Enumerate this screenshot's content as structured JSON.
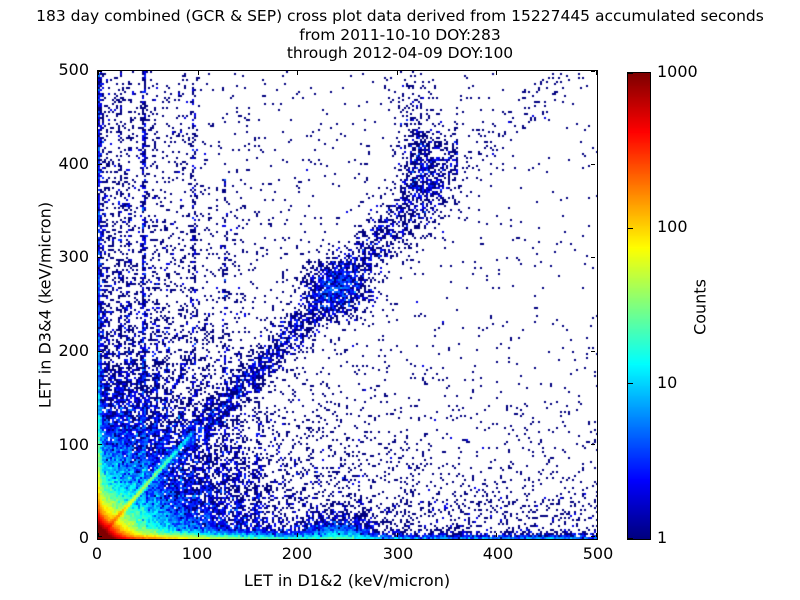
{
  "chart_data": {
    "type": "heatmap",
    "title_lines": [
      "183 day combined (GCR & SEP) cross plot data derived from 15227445 accumulated seconds",
      "from 2011-10-10 DOY:283",
      "through 2012-04-09 DOY:100"
    ],
    "xlabel": "LET in D1&2 (keV/micron)",
    "ylabel": "LET in D3&4 (keV/micron)",
    "xlim": [
      0,
      500
    ],
    "ylim": [
      0,
      500
    ],
    "x_ticks": [
      0,
      100,
      200,
      300,
      400,
      500
    ],
    "y_ticks": [
      0,
      100,
      200,
      300,
      400,
      500
    ],
    "grid": false,
    "background_color": "#ffffff",
    "point_color_min": "#00007f",
    "colorbar": {
      "label": "Counts",
      "scale": "log",
      "min": 1,
      "max": 1000,
      "ticks": [
        1,
        10,
        100,
        1000
      ],
      "colormap": "jet"
    },
    "bin_size_units": 2,
    "rng_seed": 42,
    "density_components": [
      {
        "name": "hot-core",
        "n": 70000,
        "x": {
          "dist": "exp",
          "scale": 7
        },
        "y": {
          "dist": "exp",
          "scale": 7
        }
      },
      {
        "name": "core-halo",
        "n": 25000,
        "x": {
          "dist": "exp",
          "scale": 18
        },
        "y": {
          "dist": "exp",
          "scale": 18
        }
      },
      {
        "name": "core-halo-wide",
        "n": 12000,
        "x": {
          "dist": "exp",
          "scale": 45
        },
        "y": {
          "dist": "exp",
          "scale": 45
        }
      },
      {
        "name": "bottom-band",
        "n": 16000,
        "x": {
          "dist": "exp",
          "scale": 55
        },
        "y": {
          "dist": "exp",
          "scale": 2.5
        }
      },
      {
        "name": "bottom-line-uniform",
        "n": 2000,
        "x": {
          "dist": "uniform",
          "min": 0,
          "max": 500
        },
        "y": {
          "dist": "exp",
          "scale": 2.0
        }
      },
      {
        "name": "bottom-halo",
        "n": 1500,
        "x": {
          "dist": "uniform",
          "min": 0,
          "max": 500
        },
        "y": {
          "dist": "exp",
          "scale": 50
        }
      },
      {
        "name": "bottom-clump",
        "n": 1400,
        "x": {
          "dist": "normal",
          "mu": 240,
          "sigma": 18
        },
        "y": {
          "dist": "exp",
          "scale": 8
        }
      },
      {
        "name": "left-band",
        "n": 5000,
        "x": {
          "dist": "exp",
          "scale": 1.8
        },
        "y": {
          "dist": "exp",
          "scale": 40
        }
      },
      {
        "name": "left-column-tall",
        "n": 900,
        "x": {
          "dist": "exp",
          "scale": 2.2
        },
        "y": {
          "dist": "uniform",
          "min": 0,
          "max": 500
        }
      },
      {
        "name": "left-halo",
        "n": 1200,
        "x": {
          "dist": "exp",
          "scale": 60
        },
        "y": {
          "dist": "uniform",
          "min": 0,
          "max": 500
        }
      },
      {
        "name": "main-diagonal-line",
        "n": 6000,
        "diag": {
          "slope": 1.12,
          "x": {
            "dist": "exp",
            "scale": 32,
            "max": 95
          },
          "perp_sigma": 1.6
        }
      },
      {
        "name": "diagonal-knot",
        "n": 300,
        "x": {
          "dist": "normal",
          "mu": 22.5,
          "sigma": 2.2
        },
        "y": {
          "dist": "normal",
          "mu": 25,
          "sigma": 2.2
        }
      },
      {
        "name": "diagonal-diffuse-band",
        "n": 2600,
        "diag": {
          "slope": 1.06,
          "x": {
            "dist": "uniform",
            "min": 55,
            "max": 360
          },
          "perp_sigma": 4,
          "perp_sigma_growth": 0.05
        }
      },
      {
        "name": "diagonal-blob",
        "n": 900,
        "x": {
          "dist": "normal",
          "mu": 240,
          "sigma": 16
        },
        "y": {
          "dist": "normal",
          "mu": 252,
          "sigma": 15
        }
      },
      {
        "name": "diagonal-sparse-tail",
        "n": 120,
        "diag": {
          "slope": 1.0,
          "x": {
            "dist": "uniform",
            "min": 360,
            "max": 485
          },
          "perp_sigma": 14
        }
      },
      {
        "name": "finger-a",
        "n": 350,
        "diag": {
          "slope": 0.45,
          "x": {
            "dist": "exp",
            "scale": 40,
            "max": 160
          },
          "perp_sigma": 1.6
        }
      },
      {
        "name": "finger-b",
        "n": 450,
        "diag": {
          "slope": 0.7,
          "x": {
            "dist": "exp",
            "scale": 35,
            "max": 150
          },
          "perp_sigma": 1.6
        }
      },
      {
        "name": "finger-c",
        "n": 500,
        "diag": {
          "slope": 1.22,
          "x": {
            "dist": "exp",
            "scale": 35,
            "max": 140
          },
          "perp_sigma": 1.5
        }
      },
      {
        "name": "finger-d",
        "n": 800,
        "diag": {
          "slope": 1.5,
          "x": {
            "dist": "exp",
            "scale": 30,
            "max": 130
          },
          "perp_sigma": 1.6
        }
      },
      {
        "name": "finger-e",
        "n": 650,
        "diag": {
          "slope": 2.0,
          "x": {
            "dist": "exp",
            "scale": 26,
            "max": 110
          },
          "perp_sigma": 1.6
        }
      },
      {
        "name": "finger-f",
        "n": 500,
        "diag": {
          "slope": 2.7,
          "x": {
            "dist": "exp",
            "scale": 22,
            "max": 95
          },
          "perp_sigma": 1.5
        }
      },
      {
        "name": "finger-g",
        "n": 400,
        "diag": {
          "slope": 3.8,
          "x": {
            "dist": "exp",
            "scale": 16,
            "max": 80
          },
          "perp_sigma": 1.4
        }
      },
      {
        "name": "finger-h",
        "n": 300,
        "diag": {
          "slope": 5.5,
          "x": {
            "dist": "exp",
            "scale": 10,
            "max": 60
          },
          "perp_sigma": 1.2
        }
      },
      {
        "name": "vstreak-46-tall",
        "n": 420,
        "x": {
          "dist": "normal",
          "mu": 46,
          "sigma": 1.2
        },
        "y": {
          "dist": "uniform",
          "min": 0,
          "max": 490
        }
      },
      {
        "name": "vstreak-46-low",
        "n": 380,
        "x": {
          "dist": "normal",
          "mu": 46,
          "sigma": 1.2
        },
        "y": {
          "dist": "exp",
          "scale": 120
        }
      },
      {
        "name": "vstreak-31",
        "n": 300,
        "x": {
          "dist": "normal",
          "mu": 31,
          "sigma": 1.0
        },
        "y": {
          "dist": "exp",
          "scale": 150
        }
      },
      {
        "name": "vstreak-22",
        "n": 280,
        "x": {
          "dist": "normal",
          "mu": 22,
          "sigma": 1.0
        },
        "y": {
          "dist": "exp",
          "scale": 180
        }
      },
      {
        "name": "vstreak-58",
        "n": 260,
        "x": {
          "dist": "normal",
          "mu": 58,
          "sigma": 1.2
        },
        "y": {
          "dist": "exp",
          "scale": 120
        }
      },
      {
        "name": "vstreak-69",
        "n": 200,
        "x": {
          "dist": "normal",
          "mu": 69,
          "sigma": 1.2
        },
        "y": {
          "dist": "exp",
          "scale": 100
        }
      },
      {
        "name": "vstreak-85",
        "n": 180,
        "x": {
          "dist": "normal",
          "mu": 85,
          "sigma": 1.5
        },
        "y": {
          "dist": "exp",
          "scale": 100
        }
      },
      {
        "name": "vstreak-96-tall",
        "n": 260,
        "x": {
          "dist": "normal",
          "mu": 96,
          "sigma": 1.5
        },
        "y": {
          "dist": "uniform",
          "min": 0,
          "max": 450
        }
      },
      {
        "name": "vstreak-110",
        "n": 160,
        "x": {
          "dist": "normal",
          "mu": 110,
          "sigma": 1.5
        },
        "y": {
          "dist": "exp",
          "scale": 90
        }
      },
      {
        "name": "vstreak-127",
        "n": 180,
        "x": {
          "dist": "normal",
          "mu": 127,
          "sigma": 1.6
        },
        "y": {
          "dist": "uniform",
          "min": 0,
          "max": 360
        }
      },
      {
        "name": "vstreak-140",
        "n": 150,
        "x": {
          "dist": "normal",
          "mu": 140,
          "sigma": 2.0
        },
        "y": {
          "dist": "exp",
          "scale": 80
        }
      },
      {
        "name": "vstreak-160",
        "n": 120,
        "x": {
          "dist": "normal",
          "mu": 160,
          "sigma": 2.0
        },
        "y": {
          "dist": "exp",
          "scale": 60
        }
      },
      {
        "name": "upper-vertical-band",
        "n": 350,
        "x": {
          "dist": "normal",
          "mu": 318,
          "sigma": 13
        },
        "y": {
          "dist": "uniform",
          "min": 300,
          "max": 500
        }
      },
      {
        "name": "upper-band-blob",
        "n": 260,
        "x": {
          "dist": "normal",
          "mu": 322,
          "sigma": 9
        },
        "y": {
          "dist": "normal",
          "mu": 378,
          "sigma": 20
        }
      },
      {
        "name": "background-lowerleft",
        "n": 3000,
        "x": {
          "dist": "exp",
          "scale": 140
        },
        "y": {
          "dist": "exp",
          "scale": 160
        }
      },
      {
        "name": "background-uniform",
        "n": 700,
        "x": {
          "dist": "uniform",
          "min": 0,
          "max": 500
        },
        "y": {
          "dist": "uniform",
          "min": 0,
          "max": 500
        }
      }
    ]
  }
}
